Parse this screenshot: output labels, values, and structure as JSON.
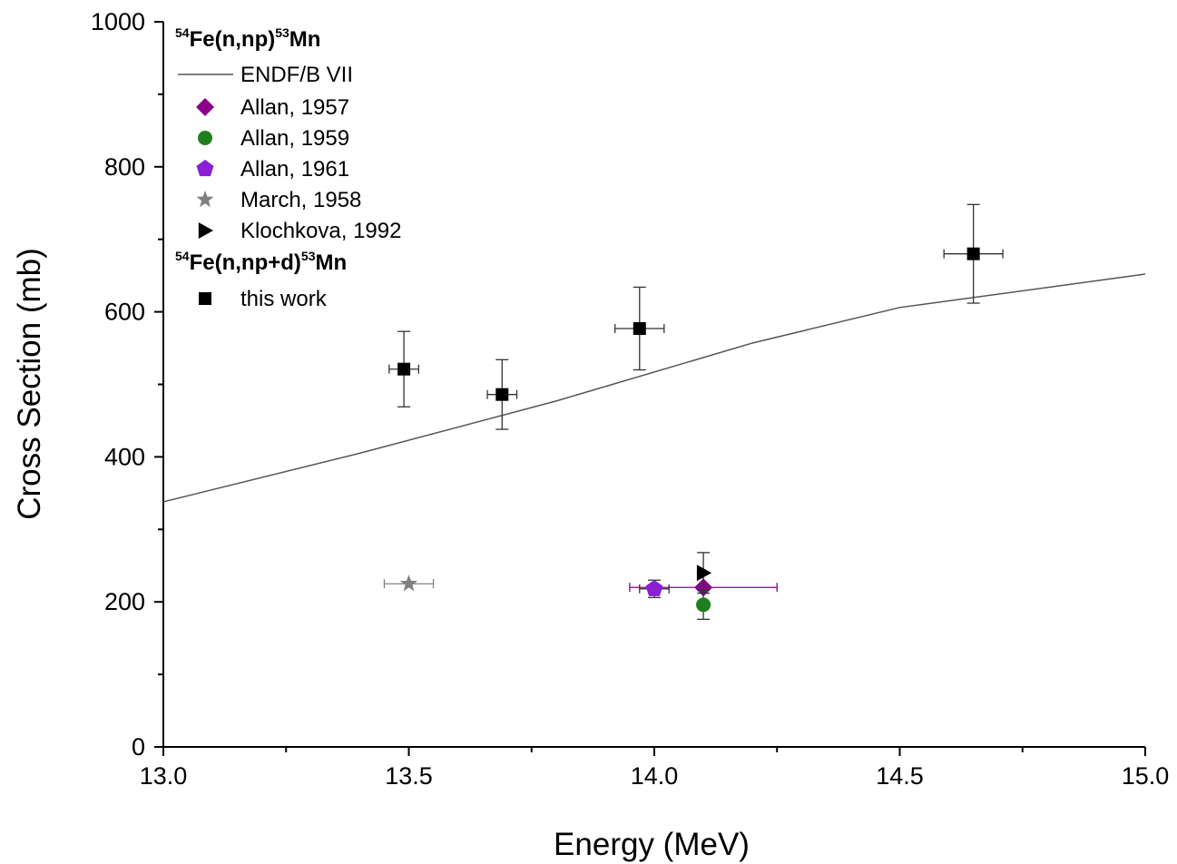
{
  "chart_data": {
    "type": "scatter",
    "xlabel": "Energy (MeV)",
    "ylabel": "Cross Section (mb)",
    "xlim": [
      13.0,
      15.0
    ],
    "ylim": [
      0,
      1000
    ],
    "x_ticks": [
      "13.0",
      "13.5",
      "14.0",
      "14.5",
      "15.0"
    ],
    "y_ticks": [
      "0",
      "200",
      "400",
      "600",
      "800",
      "1000"
    ],
    "grid": false,
    "legend_position": "top-left",
    "legend_groups": [
      {
        "title": {
          "sup1": "54",
          "main1": "Fe(n,np)",
          "sup2": "53",
          "main2": "Mn"
        },
        "entries": [
          "ENDF/B VII",
          "Allan, 1957",
          "Allan, 1959",
          "Allan, 1961",
          "March, 1958",
          "Klochkova, 1992"
        ]
      },
      {
        "title": {
          "sup1": "54",
          "main1": "Fe(n,np+d)",
          "sup2": "53",
          "main2": "Mn"
        },
        "entries": [
          "this work"
        ]
      }
    ],
    "series": [
      {
        "name": "ENDF/B VII",
        "kind": "line",
        "color": "#555555",
        "points": [
          [
            13.0,
            338
          ],
          [
            13.4,
            405
          ],
          [
            13.8,
            477
          ],
          [
            14.2,
            557
          ],
          [
            14.5,
            606
          ],
          [
            15.0,
            652
          ]
        ]
      },
      {
        "name": "Allan, 1957",
        "marker": "diamond",
        "color": "#8b008b",
        "points": [
          {
            "x": 14.1,
            "y": 220,
            "xerr": 0.15,
            "yerr": 0
          }
        ]
      },
      {
        "name": "Allan, 1959",
        "marker": "circle",
        "color": "#1f7f1f",
        "points": [
          {
            "x": 14.1,
            "y": 196,
            "xerr": 0,
            "yerr": 20
          }
        ]
      },
      {
        "name": "Allan, 1961",
        "marker": "pentagon",
        "color": "#8a1fd6",
        "points": [
          {
            "x": 14.0,
            "y": 218,
            "xerr": 0.03,
            "yerr": 12
          }
        ]
      },
      {
        "name": "March, 1958",
        "marker": "star",
        "color": "#808080",
        "points": [
          {
            "x": 13.5,
            "y": 225,
            "xerr": 0.05,
            "yerr": 0
          }
        ]
      },
      {
        "name": "Klochkova, 1992",
        "marker": "triangle-right",
        "color": "#000000",
        "points": [
          {
            "x": 14.1,
            "y": 240,
            "xerr": 0,
            "yerr": 28
          }
        ]
      },
      {
        "name": "this work",
        "marker": "square",
        "color": "#000000",
        "points": [
          {
            "x": 13.49,
            "y": 521,
            "xerr": 0.03,
            "yerr": 52
          },
          {
            "x": 13.69,
            "y": 486,
            "xerr": 0.03,
            "yerr": 48
          },
          {
            "x": 13.97,
            "y": 577,
            "xerr": 0.05,
            "yerr": 57
          },
          {
            "x": 14.65,
            "y": 680,
            "xerr": 0.06,
            "yerr": 68
          }
        ]
      }
    ]
  }
}
